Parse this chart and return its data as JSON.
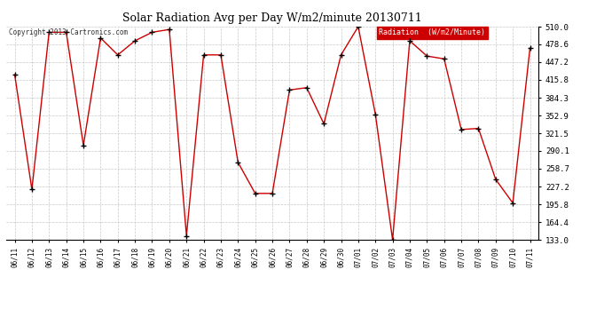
{
  "title": "Solar Radiation Avg per Day W/m2/minute 20130711",
  "copyright": "Copyright 2013 Cartronics.com",
  "legend_label": "Radiation  (W/m2/Minute)",
  "dates": [
    "06/11",
    "06/12",
    "06/13",
    "06/14",
    "06/15",
    "06/16",
    "06/17",
    "06/18",
    "06/19",
    "06/20",
    "06/21",
    "06/22",
    "06/23",
    "06/24",
    "06/25",
    "06/26",
    "06/27",
    "06/28",
    "06/29",
    "06/30",
    "07/01",
    "07/02",
    "07/03",
    "07/04",
    "07/05",
    "07/06",
    "07/07",
    "07/08",
    "07/09",
    "07/10",
    "07/11"
  ],
  "values": [
    425,
    222,
    500,
    500,
    300,
    490,
    460,
    485,
    500,
    505,
    140,
    460,
    460,
    270,
    215,
    215,
    398,
    402,
    338,
    460,
    510,
    355,
    133,
    485,
    458,
    453,
    328,
    330,
    240,
    198,
    472
  ],
  "line_color": "#cc0000",
  "marker_color": "#000000",
  "bg_color": "#ffffff",
  "grid_color": "#c8c8c8",
  "legend_bg": "#cc0000",
  "legend_text": "#ffffff",
  "ymin": 133.0,
  "ymax": 510.0,
  "yticks": [
    133.0,
    164.4,
    195.8,
    227.2,
    258.7,
    290.1,
    321.5,
    352.9,
    384.3,
    415.8,
    447.2,
    478.6,
    510.0
  ]
}
